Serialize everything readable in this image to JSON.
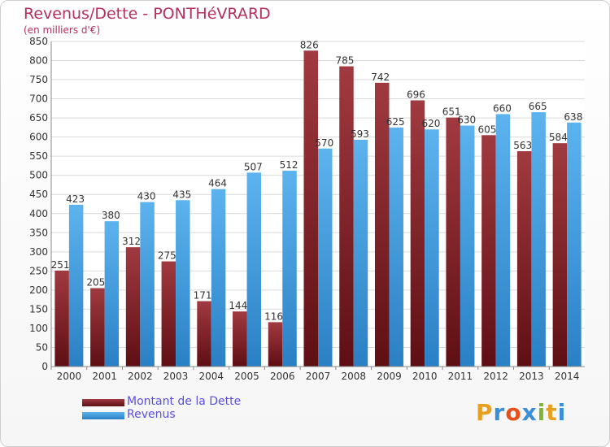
{
  "title": "Revenus/Dette - PONTHéVRARD",
  "subtitle": "(en milliers d'€)",
  "colors": {
    "dette": "#7a1a1f",
    "revenus": "#3d9de3",
    "axis_text": "#333333",
    "title": "#b5305a",
    "legend_text": "#5b4fe0"
  },
  "legend": {
    "dette_label": "Montant de la Dette",
    "revenus_label": "Revenus"
  },
  "logo": {
    "letters": [
      "P",
      "r",
      "o",
      "x",
      "i",
      "t",
      "i"
    ],
    "colors": [
      "#e8a020",
      "#3a8fd8",
      "#e8501a",
      "#3a8fd8",
      "#7cb82f",
      "#e8a020",
      "#3a8fd8"
    ]
  },
  "chart_data": {
    "type": "bar",
    "categories": [
      "2000",
      "2001",
      "2002",
      "2003",
      "2004",
      "2005",
      "2006",
      "2007",
      "2008",
      "2009",
      "2010",
      "2011",
      "2012",
      "2013",
      "2014"
    ],
    "series": [
      {
        "name": "Montant de la Dette",
        "values": [
          251,
          205,
          312,
          275,
          171,
          144,
          116,
          826,
          785,
          742,
          696,
          651,
          605,
          563,
          584
        ]
      },
      {
        "name": "Revenus",
        "values": [
          423,
          380,
          430,
          435,
          464,
          507,
          512,
          570,
          593,
          625,
          620,
          630,
          660,
          665,
          638
        ]
      }
    ],
    "ylim": [
      0,
      850
    ],
    "ytick_step": 50,
    "grid": true,
    "legend": "bottom-left"
  }
}
